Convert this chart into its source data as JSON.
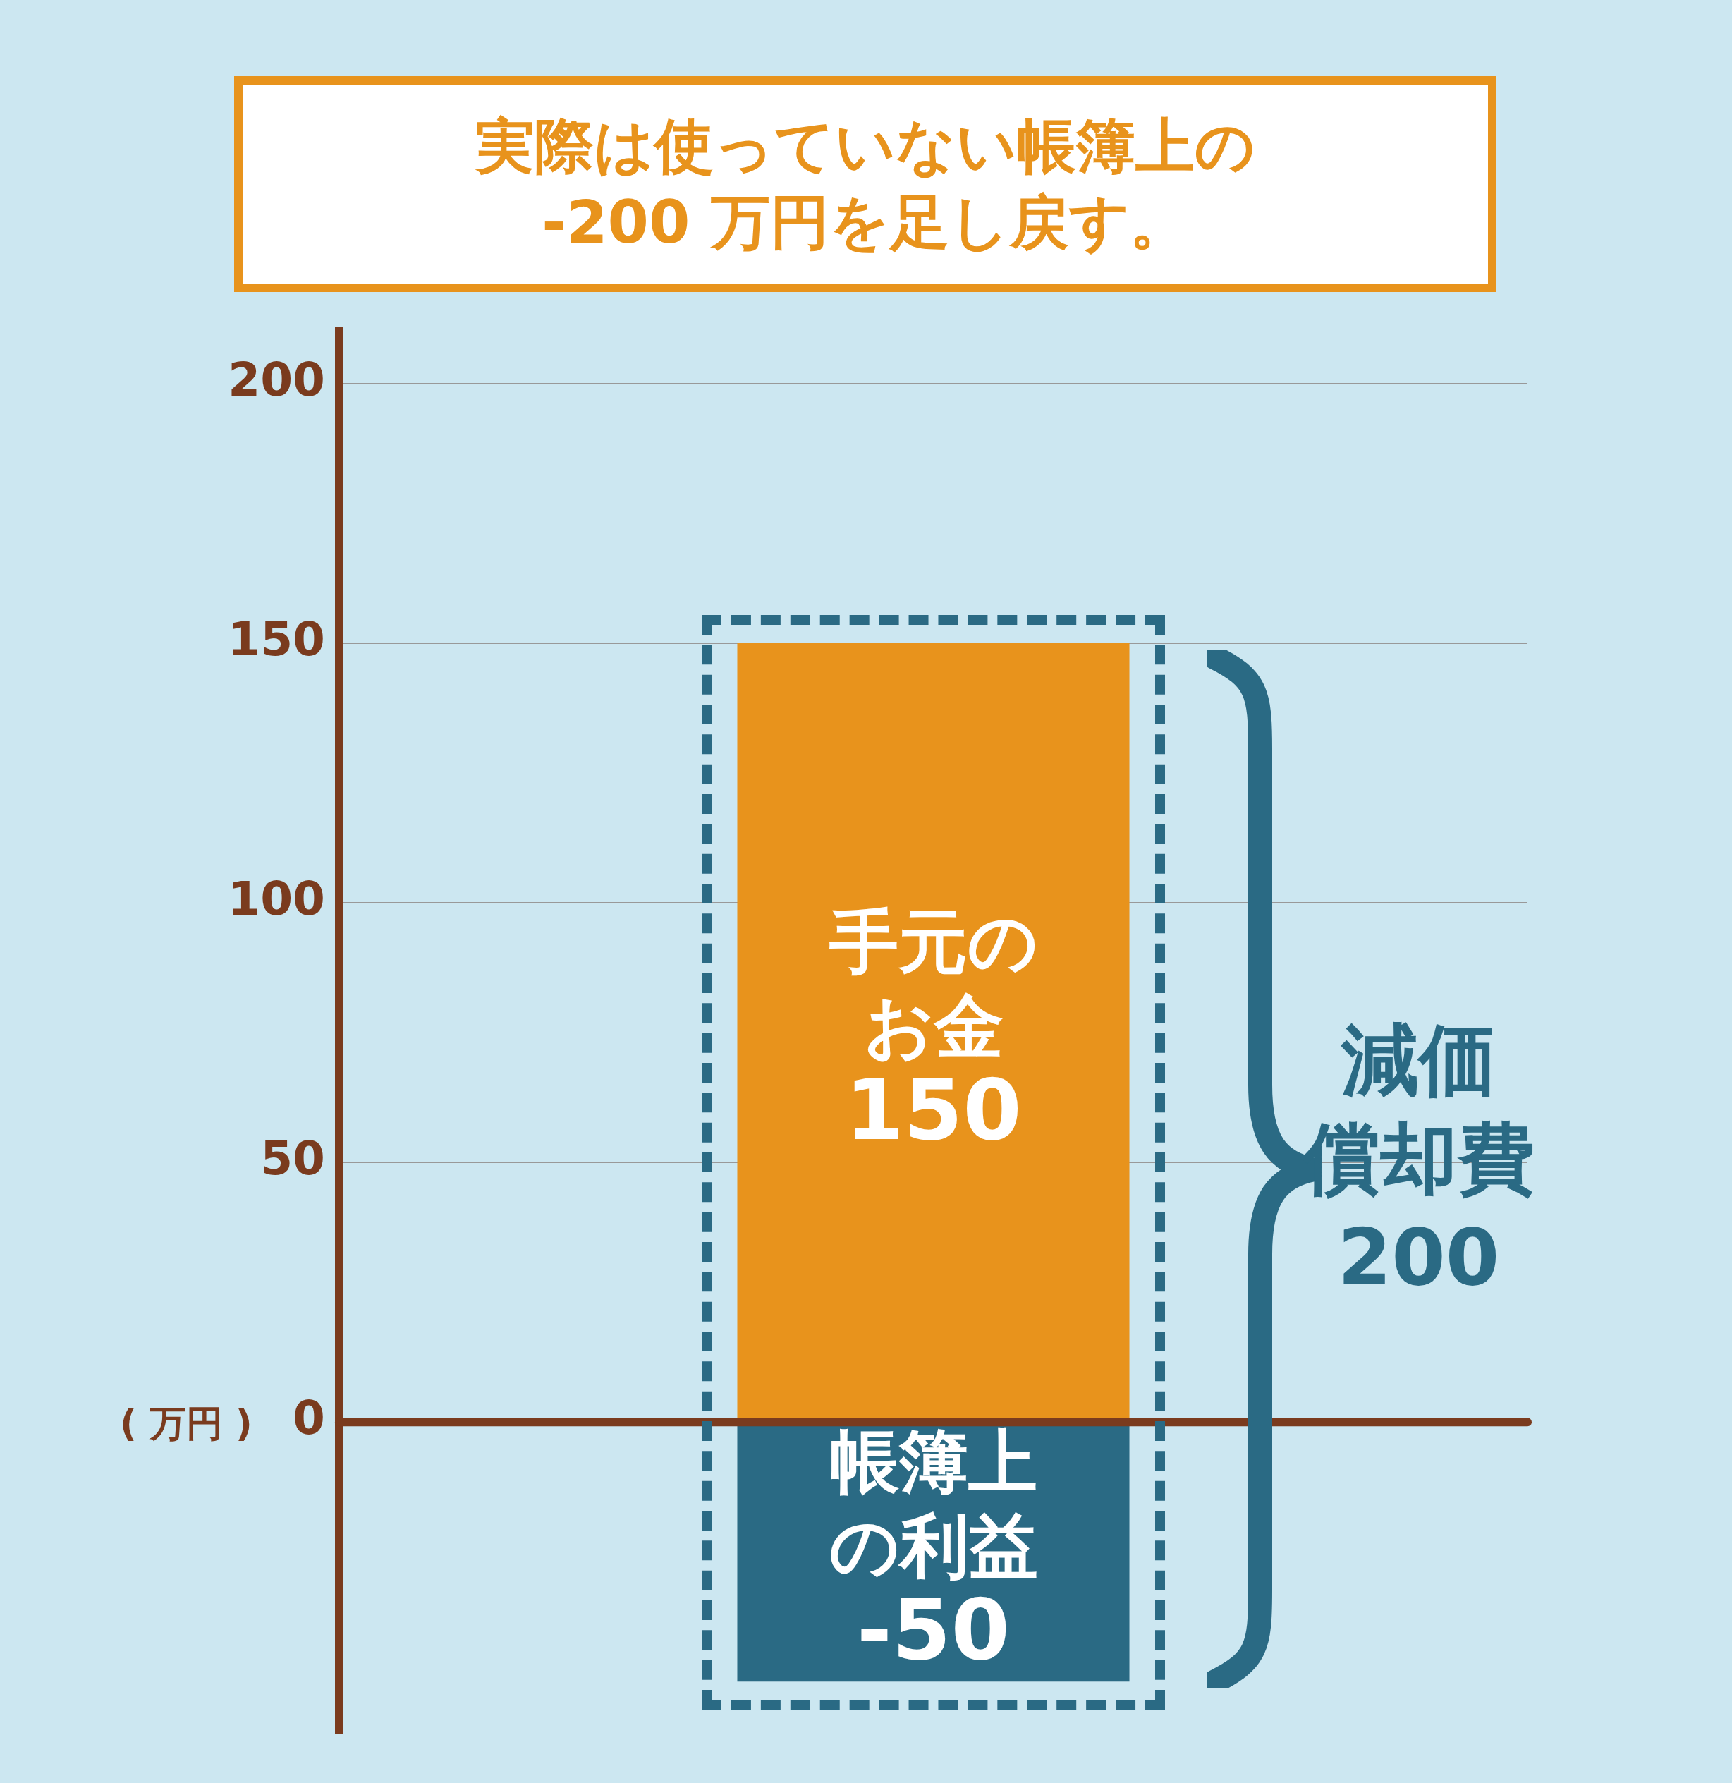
{
  "chart_data": {
    "type": "bar",
    "title": "実際は使っていない帳簿上の -200 万円を足し戻す。",
    "ylabel": "( 万円 )",
    "categories": [
      null
    ],
    "stacked": true,
    "data_labels": true,
    "series": [
      {
        "name": "手元のお金",
        "color": "#e8931c",
        "values": [
          150
        ]
      },
      {
        "name": "帳簿上の利益",
        "color": "#2a6a84",
        "values": [
          -50
        ]
      }
    ],
    "ylim": [
      -60,
      210
    ],
    "yticks": [
      0,
      50,
      100,
      150,
      200
    ],
    "grid": "y",
    "tick_labels": "y",
    "ref_lines": [
      {
        "axis": "y",
        "value": 0,
        "color": "#7a3b1e"
      }
    ],
    "annotations": [
      "減価償却費",
      "200"
    ]
  }
}
